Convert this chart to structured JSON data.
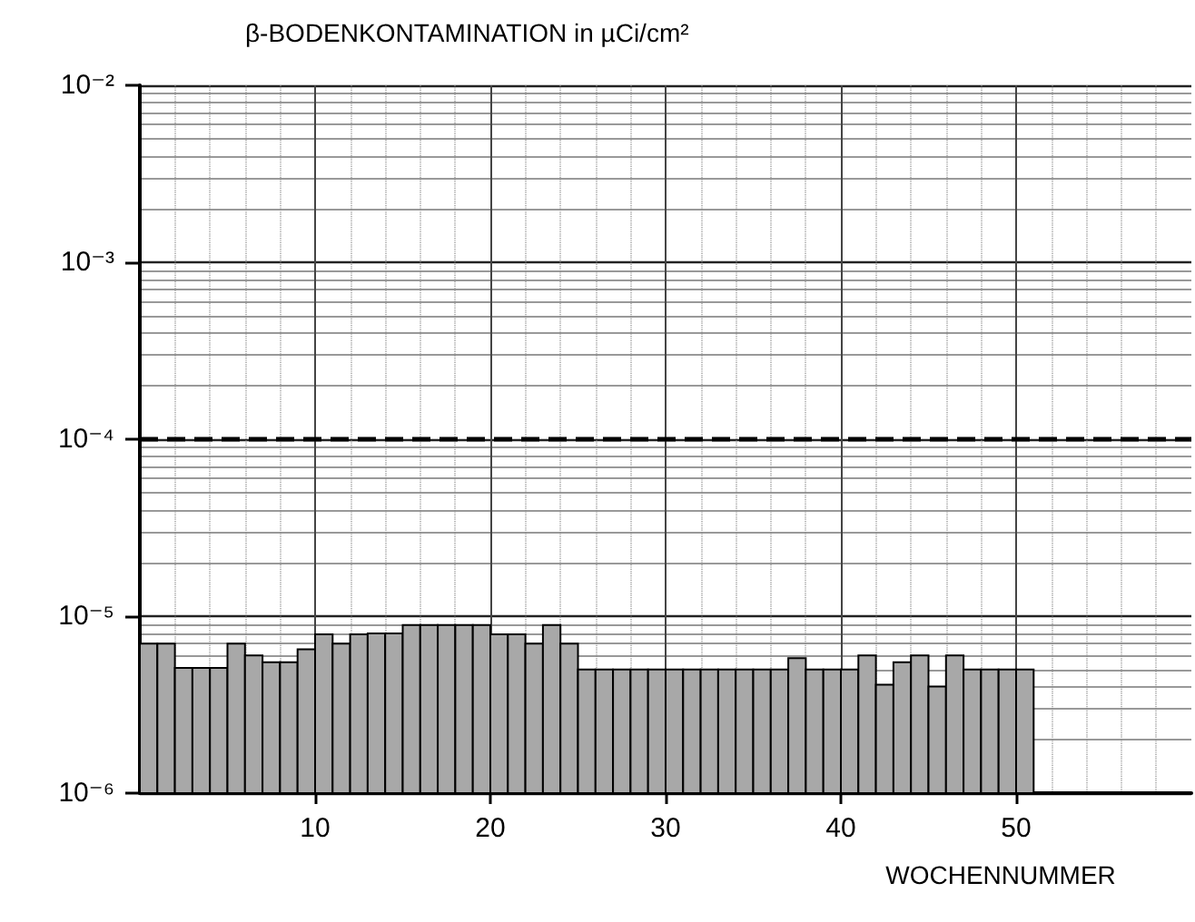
{
  "chart_data": {
    "type": "histogram",
    "title": "β-BODENKONTAMINATION in µCi/cm²",
    "xlabel": "WOCHENNUMMER",
    "bins": [
      0,
      1,
      2,
      3,
      4,
      5,
      6,
      7,
      8,
      9,
      10,
      11,
      12,
      13,
      14,
      15,
      16,
      17,
      18,
      19,
      20,
      21,
      22,
      23,
      24,
      25,
      26,
      27,
      28,
      29,
      30,
      31,
      32,
      33,
      34,
      35,
      36,
      37,
      38,
      39,
      40,
      41,
      42,
      43,
      44,
      45,
      46,
      47,
      48,
      49,
      50,
      51
    ],
    "values": [
      7e-06,
      7e-06,
      5.1e-06,
      5.1e-06,
      5.1e-06,
      7e-06,
      6e-06,
      5.5e-06,
      5.5e-06,
      6.5e-06,
      7.9e-06,
      7e-06,
      7.9e-06,
      8e-06,
      8e-06,
      8.9e-06,
      8.9e-06,
      8.9e-06,
      8.9e-06,
      8.9e-06,
      7.9e-06,
      7.9e-06,
      7e-06,
      8.9e-06,
      7e-06,
      5e-06,
      5e-06,
      5e-06,
      5e-06,
      5e-06,
      5e-06,
      5e-06,
      5e-06,
      5e-06,
      5e-06,
      5e-06,
      5e-06,
      5.8e-06,
      5e-06,
      5e-06,
      5e-06,
      6e-06,
      4.1e-06,
      5.5e-06,
      6e-06,
      4e-06,
      6e-06,
      5e-06,
      5e-06,
      5e-06,
      5e-06
    ],
    "color": "#a8a8a8",
    "xlim": [
      0,
      60
    ],
    "xticks": [
      10,
      20,
      30,
      40,
      50
    ],
    "ylim": [
      1e-06,
      0.01
    ],
    "yticks": [
      {
        "value": 1e-06,
        "label": "10⁻⁶"
      },
      {
        "value": 1e-05,
        "label": "10⁻⁵"
      },
      {
        "value": 0.0001,
        "label": "10⁻⁴"
      },
      {
        "value": 0.001,
        "label": "10⁻³"
      },
      {
        "value": 0.01,
        "label": "10⁻²"
      }
    ],
    "log": "y",
    "grid": true,
    "ref_lines": [
      {
        "axis": "y",
        "value": 0.0001,
        "label": null,
        "color": "#000000",
        "line_style": "dashed"
      }
    ]
  }
}
